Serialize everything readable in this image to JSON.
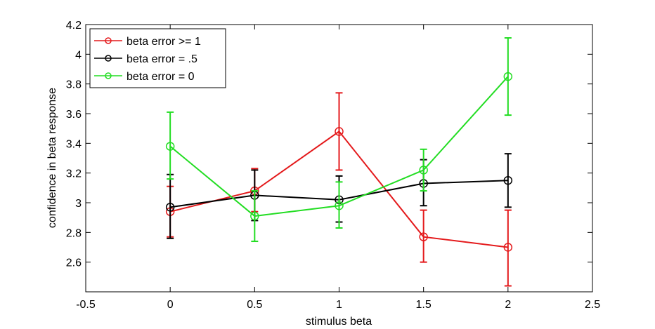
{
  "chart_data": {
    "type": "line",
    "title": "",
    "xlabel": "stimulus beta",
    "ylabel": "confidence in beta response",
    "xlim": [
      -0.5,
      2.5
    ],
    "ylim": [
      2.4,
      4.2
    ],
    "xticks": [
      -0.5,
      0,
      0.5,
      1,
      1.5,
      2,
      2.5
    ],
    "xtick_labels": [
      "-0.5",
      "0",
      "0.5",
      "1",
      "1.5",
      "2",
      "2.5"
    ],
    "yticks": [
      2.6,
      2.8,
      3.0,
      3.2,
      3.4,
      3.6,
      3.8,
      4.0,
      4.2
    ],
    "ytick_labels": [
      "2.6",
      "2.8",
      "3",
      "3.2",
      "3.4",
      "3.6",
      "3.8",
      "4",
      "4.2"
    ],
    "grid": false,
    "legend_position": "top-left",
    "x": [
      0,
      0.5,
      1,
      1.5,
      2
    ],
    "series": [
      {
        "name": "beta error >= 1",
        "color": "#e41a1c",
        "values": [
          2.94,
          3.08,
          3.48,
          2.77,
          2.7
        ],
        "err_low": [
          2.77,
          2.94,
          3.22,
          2.6,
          2.44
        ],
        "err_high": [
          3.11,
          3.23,
          3.74,
          2.95,
          2.95
        ]
      },
      {
        "name": "beta error = .5",
        "color": "#000000",
        "values": [
          2.97,
          3.05,
          3.02,
          3.13,
          3.15
        ],
        "err_low": [
          2.76,
          2.88,
          2.87,
          2.98,
          2.97
        ],
        "err_high": [
          3.19,
          3.22,
          3.18,
          3.29,
          3.33
        ]
      },
      {
        "name": "beta error = 0",
        "color": "#22dd22",
        "values": [
          3.38,
          2.91,
          2.98,
          3.22,
          3.85
        ],
        "err_low": [
          3.16,
          2.74,
          2.83,
          3.08,
          3.59
        ],
        "err_high": [
          3.61,
          3.08,
          3.14,
          3.36,
          4.11
        ]
      }
    ]
  }
}
